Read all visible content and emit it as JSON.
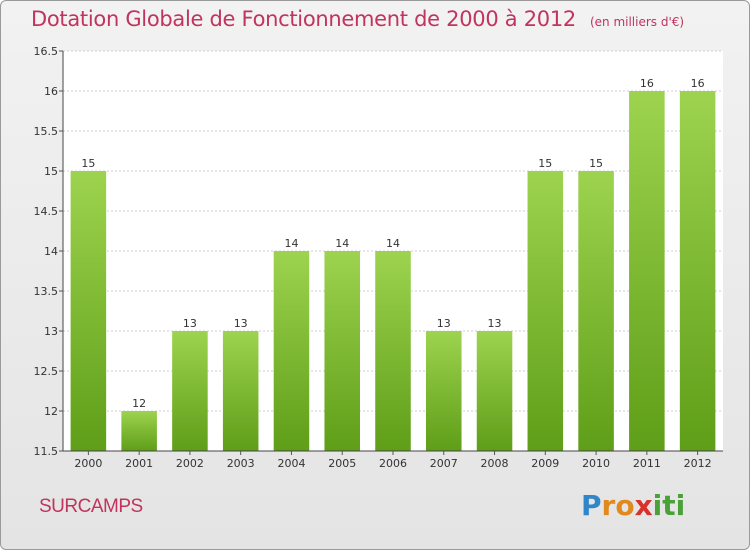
{
  "title": "Dotation Globale de Fonctionnement de 2000 à 2012",
  "unit": "(en milliers d'€)",
  "commune": "SURCAMPS",
  "logo": [
    "P",
    "r",
    "o",
    "x",
    "i",
    "t",
    "i"
  ],
  "colors": {
    "title": "#c0345f",
    "bar_top": "#9dd34f",
    "bar_bottom": "#5f9e18",
    "grid": "#cfcfcf"
  },
  "chart_data": {
    "type": "bar",
    "categories": [
      "2000",
      "2001",
      "2002",
      "2003",
      "2004",
      "2005",
      "2006",
      "2007",
      "2008",
      "2009",
      "2010",
      "2011",
      "2012"
    ],
    "values": [
      15,
      12,
      13,
      13,
      14,
      14,
      14,
      13,
      13,
      15,
      15,
      16,
      16
    ],
    "data_labels": [
      "15",
      "12",
      "13",
      "13",
      "14",
      "14",
      "14",
      "13",
      "13",
      "15",
      "15",
      "16",
      "16"
    ],
    "yticks": [
      "11.5",
      "12",
      "12.5",
      "13",
      "13.5",
      "14",
      "14.5",
      "15",
      "15.5",
      "16",
      "16.5"
    ],
    "ylim": [
      11.5,
      16.5
    ],
    "grid": true,
    "legend": "none"
  }
}
